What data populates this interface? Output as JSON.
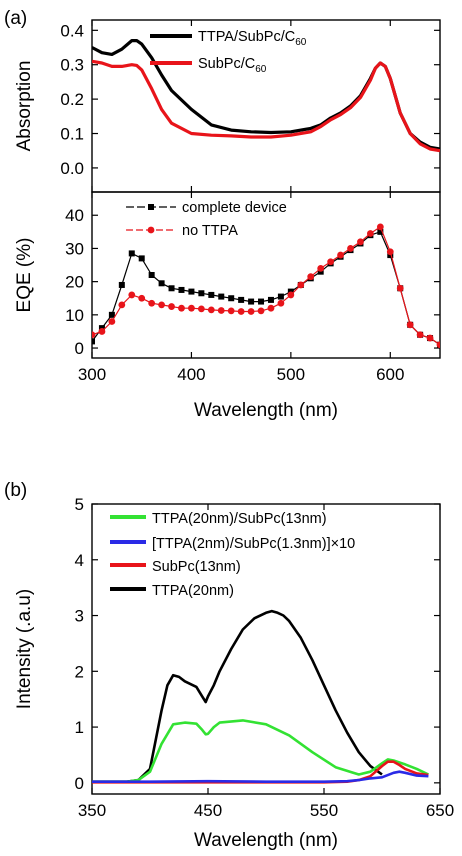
{
  "chart_data": [
    {
      "panel": "(a)",
      "type": "line",
      "ylabel": "Absorption",
      "xlim": [
        300,
        650
      ],
      "ylim": [
        -0.07,
        0.43
      ],
      "yticks": [
        "0.0",
        "0.1",
        "0.2",
        "0.3",
        "0.4"
      ],
      "ytick_values": [
        0.0,
        0.1,
        0.2,
        0.3,
        0.4
      ],
      "legend_position": "top-center",
      "series": [
        {
          "name": "TTPA/SubPc/C",
          "name_sub": "60",
          "color": "#000000",
          "x": [
            300,
            310,
            320,
            330,
            340,
            345,
            350,
            360,
            370,
            380,
            400,
            420,
            440,
            460,
            480,
            500,
            520,
            530,
            540,
            550,
            560,
            570,
            580,
            585,
            590,
            595,
            600,
            610,
            620,
            630,
            640,
            650
          ],
          "y": [
            0.35,
            0.335,
            0.33,
            0.345,
            0.37,
            0.37,
            0.36,
            0.32,
            0.27,
            0.225,
            0.17,
            0.125,
            0.11,
            0.105,
            0.103,
            0.105,
            0.115,
            0.125,
            0.145,
            0.16,
            0.18,
            0.21,
            0.26,
            0.29,
            0.305,
            0.295,
            0.26,
            0.16,
            0.1,
            0.075,
            0.06,
            0.055
          ]
        },
        {
          "name": "SubPc/C",
          "name_sub": "60",
          "color": "#e8141a",
          "x": [
            300,
            310,
            320,
            330,
            340,
            345,
            350,
            360,
            370,
            380,
            400,
            420,
            440,
            460,
            480,
            500,
            520,
            530,
            540,
            550,
            560,
            570,
            580,
            585,
            590,
            595,
            600,
            610,
            620,
            630,
            640,
            650
          ],
          "y": [
            0.31,
            0.305,
            0.295,
            0.295,
            0.3,
            0.298,
            0.285,
            0.23,
            0.17,
            0.13,
            0.1,
            0.095,
            0.093,
            0.09,
            0.09,
            0.095,
            0.105,
            0.12,
            0.14,
            0.155,
            0.175,
            0.205,
            0.255,
            0.29,
            0.305,
            0.295,
            0.26,
            0.16,
            0.1,
            0.07,
            0.055,
            0.05
          ]
        }
      ]
    },
    {
      "panel": "(a)",
      "type": "line",
      "xlabel": "Wavelength (nm)",
      "ylabel": "EQE (%)",
      "xlim": [
        300,
        650
      ],
      "ylim": [
        -3,
        47
      ],
      "xticks": [
        "300",
        "400",
        "500",
        "600"
      ],
      "xtick_values": [
        300,
        400,
        500,
        600
      ],
      "yticks": [
        "0",
        "10",
        "20",
        "30",
        "40"
      ],
      "ytick_values": [
        0,
        10,
        20,
        30,
        40
      ],
      "legend_position": "top-left",
      "series": [
        {
          "name": "complete device",
          "color": "#000000",
          "marker": "square",
          "x": [
            300,
            310,
            320,
            330,
            340,
            350,
            360,
            370,
            380,
            390,
            400,
            410,
            420,
            430,
            440,
            450,
            460,
            470,
            480,
            490,
            500,
            510,
            520,
            530,
            540,
            550,
            560,
            570,
            580,
            590,
            600,
            610,
            620,
            630,
            640,
            650
          ],
          "y": [
            2,
            6,
            10,
            19,
            28.5,
            27,
            22,
            19.5,
            18,
            17.5,
            17,
            16.5,
            16,
            15.5,
            15,
            14.5,
            14,
            14,
            14.5,
            15.5,
            17,
            19,
            21,
            23,
            25.5,
            27.5,
            29.5,
            31.5,
            34,
            35,
            28,
            18,
            7,
            4,
            3,
            1
          ]
        },
        {
          "name": "no TTPA",
          "color": "#e8141a",
          "marker": "circle",
          "x": [
            300,
            310,
            320,
            330,
            340,
            350,
            360,
            370,
            380,
            390,
            400,
            410,
            420,
            430,
            440,
            450,
            460,
            470,
            480,
            490,
            500,
            510,
            520,
            530,
            540,
            550,
            560,
            570,
            580,
            590,
            600,
            610,
            620,
            630,
            640,
            650
          ],
          "y": [
            4,
            5,
            8,
            13,
            16,
            15,
            13.5,
            13,
            12.5,
            12,
            12,
            11.8,
            11.5,
            11.3,
            11.2,
            11,
            11,
            11.2,
            12,
            13.5,
            16,
            19,
            21.5,
            24,
            26,
            28,
            30,
            32,
            34.5,
            36.5,
            29,
            18,
            7,
            4,
            3,
            1
          ]
        }
      ]
    },
    {
      "panel": "(b)",
      "type": "line",
      "xlabel": "Wavelength (nm)",
      "ylabel": "Intensity (.a.u)",
      "xlim": [
        350,
        650
      ],
      "ylim": [
        -0.2,
        5
      ],
      "xticks": [
        "350",
        "450",
        "550",
        "650"
      ],
      "xtick_values": [
        350,
        450,
        550,
        650
      ],
      "yticks": [
        "0",
        "1",
        "2",
        "3",
        "4",
        "5"
      ],
      "ytick_values": [
        0,
        1,
        2,
        3,
        4,
        5
      ],
      "legend_position": "top-right",
      "series": [
        {
          "name": "TTPA(20nm)/SubPc(13nm)",
          "color": "#33e233",
          "x": [
            350,
            380,
            390,
            400,
            410,
            420,
            430,
            440,
            445,
            448,
            450,
            455,
            460,
            480,
            500,
            520,
            540,
            560,
            580,
            590,
            600,
            605,
            610,
            620,
            630,
            640
          ],
          "y": [
            0.02,
            0.02,
            0.05,
            0.2,
            0.7,
            1.05,
            1.08,
            1.06,
            0.95,
            0.87,
            0.88,
            1.0,
            1.08,
            1.12,
            1.05,
            0.85,
            0.55,
            0.28,
            0.15,
            0.2,
            0.35,
            0.42,
            0.4,
            0.33,
            0.25,
            0.15
          ]
        },
        {
          "name": "[TTPA(2nm)/SubPc(1.3nm)]×10",
          "color": "#2a2ae6",
          "x": [
            350,
            400,
            450,
            500,
            550,
            570,
            580,
            590,
            600,
            610,
            615,
            620,
            630,
            640
          ],
          "y": [
            0.02,
            0.02,
            0.03,
            0.02,
            0.02,
            0.03,
            0.05,
            0.08,
            0.1,
            0.18,
            0.2,
            0.18,
            0.13,
            0.12
          ]
        },
        {
          "name": "SubPc(13nm)",
          "color": "#e8141a",
          "x": [
            350,
            400,
            450,
            500,
            550,
            570,
            580,
            590,
            600,
            605,
            610,
            615,
            620,
            630,
            640
          ],
          "y": [
            0.01,
            0.01,
            0.01,
            0.01,
            0.01,
            0.02,
            0.05,
            0.12,
            0.3,
            0.38,
            0.38,
            0.32,
            0.25,
            0.17,
            0.14
          ]
        },
        {
          "name": "TTPA(20nm)",
          "color": "#000000",
          "x": [
            350,
            380,
            390,
            400,
            410,
            415,
            420,
            425,
            430,
            440,
            445,
            448,
            450,
            455,
            460,
            470,
            480,
            490,
            500,
            505,
            510,
            515,
            520,
            530,
            540,
            550,
            560,
            570,
            580,
            590,
            600
          ],
          "y": [
            0.02,
            0.02,
            0.05,
            0.25,
            1.3,
            1.75,
            1.93,
            1.9,
            1.82,
            1.72,
            1.55,
            1.45,
            1.55,
            1.75,
            2.0,
            2.4,
            2.75,
            2.95,
            3.05,
            3.08,
            3.05,
            3.0,
            2.9,
            2.6,
            2.2,
            1.75,
            1.3,
            0.9,
            0.55,
            0.3,
            0.15
          ]
        }
      ]
    }
  ]
}
